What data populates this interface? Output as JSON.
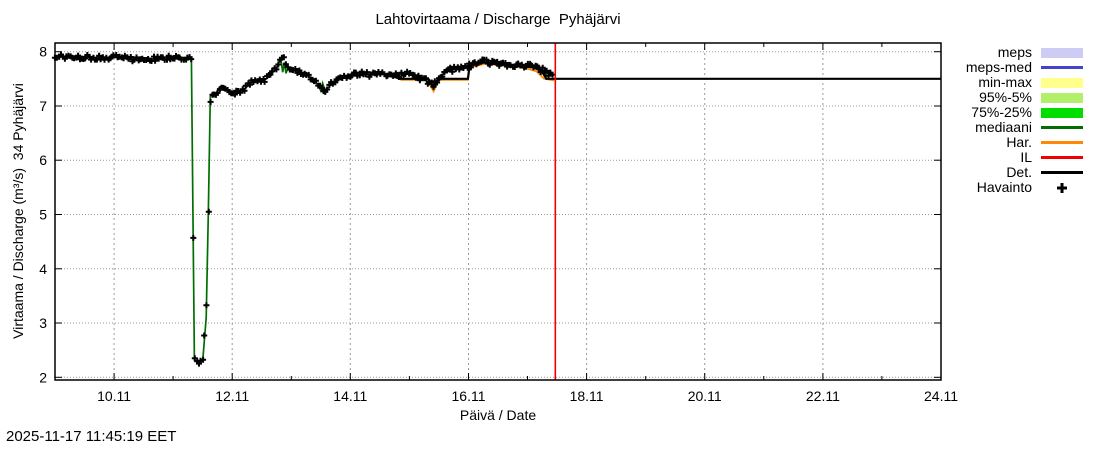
{
  "footer": {
    "timestamp": "2025-11-17 11:45:19 EET"
  },
  "chart_data": {
    "type": "line",
    "title": "Lahtovirtaama / Discharge  Pyhäjärvi",
    "x_axis": {
      "label": "Päivä / Date",
      "domain_days": [
        9.0,
        24.0
      ],
      "major_ticks": [
        10,
        12,
        14,
        16,
        18,
        20,
        22,
        24
      ],
      "tick_labels": [
        "10.11",
        "12.11",
        "14.11",
        "16.11",
        "18.11",
        "20.11",
        "22.11",
        "24.11"
      ],
      "minor_ticks": [
        9,
        11,
        13,
        15,
        17,
        19,
        21,
        23
      ],
      "grid": true
    },
    "y_axis": {
      "label": "Virtaama / Discharge (m³/s)  34 Pyhäjärvi",
      "domain": [
        1.95,
        8.16
      ],
      "ticks": [
        2,
        3,
        4,
        5,
        6,
        7,
        8
      ],
      "grid": true
    },
    "series": {
      "observations": {
        "name": "Havainto",
        "marker": "plus",
        "color": "#000000",
        "range_days": [
          9.0,
          17.45
        ],
        "noise": {
          "step_days": 0.032,
          "amplitude": 0.045,
          "x_jitter_days": 0.008
        },
        "keypoints": [
          [
            9.0,
            7.92
          ],
          [
            9.25,
            7.89
          ],
          [
            9.5,
            7.91
          ],
          [
            9.75,
            7.88
          ],
          [
            10.0,
            7.9
          ],
          [
            10.25,
            7.87
          ],
          [
            10.5,
            7.85
          ],
          [
            10.75,
            7.88
          ],
          [
            11.0,
            7.9
          ],
          [
            11.31,
            7.88
          ],
          [
            11.36,
            2.32
          ],
          [
            11.44,
            2.26
          ],
          [
            11.5,
            2.3
          ],
          [
            11.56,
            3.1
          ],
          [
            11.595,
            5.0
          ],
          [
            11.63,
            7.18
          ],
          [
            11.72,
            7.24
          ],
          [
            11.83,
            7.36
          ],
          [
            11.94,
            7.28
          ],
          [
            12.06,
            7.24
          ],
          [
            12.2,
            7.3
          ],
          [
            12.34,
            7.45
          ],
          [
            12.44,
            7.5
          ],
          [
            12.54,
            7.47
          ],
          [
            12.66,
            7.58
          ],
          [
            12.76,
            7.72
          ],
          [
            12.84,
            7.93
          ],
          [
            12.95,
            7.72
          ],
          [
            13.05,
            7.67
          ],
          [
            13.18,
            7.61
          ],
          [
            13.32,
            7.52
          ],
          [
            13.46,
            7.38
          ],
          [
            13.58,
            7.26
          ],
          [
            13.7,
            7.44
          ],
          [
            13.82,
            7.53
          ],
          [
            13.96,
            7.57
          ],
          [
            14.15,
            7.6
          ],
          [
            14.35,
            7.57
          ],
          [
            14.55,
            7.6
          ],
          [
            14.78,
            7.56
          ],
          [
            14.95,
            7.62
          ],
          [
            15.1,
            7.56
          ],
          [
            15.26,
            7.48
          ],
          [
            15.4,
            7.38
          ],
          [
            15.53,
            7.56
          ],
          [
            15.68,
            7.66
          ],
          [
            15.82,
            7.69
          ],
          [
            15.96,
            7.71
          ],
          [
            16.1,
            7.78
          ],
          [
            16.26,
            7.82
          ],
          [
            16.42,
            7.79
          ],
          [
            16.58,
            7.76
          ],
          [
            16.72,
            7.72
          ],
          [
            16.86,
            7.74
          ],
          [
            17.0,
            7.76
          ],
          [
            17.13,
            7.7
          ],
          [
            17.26,
            7.66
          ],
          [
            17.36,
            7.59
          ],
          [
            17.45,
            7.57
          ]
        ]
      },
      "mediaani": {
        "name": "mediaani",
        "color": "#006e00",
        "points": [
          [
            9.0,
            7.92
          ],
          [
            9.25,
            7.89
          ],
          [
            9.5,
            7.91
          ],
          [
            9.75,
            7.88
          ],
          [
            10.0,
            7.9
          ],
          [
            10.25,
            7.87
          ],
          [
            10.5,
            7.85
          ],
          [
            10.75,
            7.88
          ],
          [
            11.0,
            7.9
          ],
          [
            11.31,
            7.88
          ],
          [
            11.36,
            2.32
          ],
          [
            11.44,
            2.26
          ],
          [
            11.5,
            2.3
          ],
          [
            11.56,
            3.1
          ],
          [
            11.595,
            5.0
          ],
          [
            11.63,
            7.18
          ],
          [
            11.72,
            7.24
          ],
          [
            11.83,
            7.36
          ],
          [
            11.94,
            7.28
          ],
          [
            12.06,
            7.24
          ],
          [
            12.2,
            7.3
          ],
          [
            12.34,
            7.45
          ],
          [
            12.44,
            7.5
          ],
          [
            12.54,
            7.47
          ],
          [
            12.66,
            7.58
          ],
          [
            12.76,
            7.72
          ],
          [
            12.82,
            7.9
          ],
          [
            12.855,
            7.62
          ],
          [
            12.88,
            7.8
          ],
          [
            12.91,
            7.6
          ],
          [
            12.95,
            7.72
          ],
          [
            13.05,
            7.67
          ],
          [
            13.18,
            7.61
          ],
          [
            13.32,
            7.52
          ],
          [
            13.46,
            7.38
          ],
          [
            13.5,
            7.28
          ],
          [
            13.53,
            7.42
          ],
          [
            13.58,
            7.26
          ],
          [
            13.7,
            7.44
          ],
          [
            13.82,
            7.53
          ],
          [
            13.96,
            7.57
          ],
          [
            14.15,
            7.6
          ],
          [
            14.35,
            7.57
          ],
          [
            14.55,
            7.6
          ],
          [
            14.78,
            7.56
          ],
          [
            14.95,
            7.62
          ],
          [
            15.1,
            7.56
          ],
          [
            15.26,
            7.48
          ],
          [
            15.4,
            7.38
          ],
          [
            15.53,
            7.56
          ],
          [
            15.68,
            7.66
          ],
          [
            15.82,
            7.69
          ],
          [
            15.96,
            7.71
          ],
          [
            16.1,
            7.78
          ],
          [
            16.26,
            7.82
          ],
          [
            16.42,
            7.79
          ],
          [
            16.58,
            7.76
          ],
          [
            16.72,
            7.72
          ],
          [
            16.86,
            7.74
          ],
          [
            17.0,
            7.76
          ],
          [
            17.13,
            7.7
          ],
          [
            17.26,
            7.66
          ],
          [
            17.3,
            7.54
          ],
          [
            17.33,
            7.63
          ],
          [
            17.36,
            7.59
          ],
          [
            17.45,
            7.57
          ]
        ]
      },
      "det": {
        "name": "Det.",
        "color": "#000000",
        "points": [
          [
            14.6,
            7.58
          ],
          [
            14.85,
            7.5
          ],
          [
            15.32,
            7.5
          ],
          [
            15.41,
            7.33
          ],
          [
            15.49,
            7.5
          ],
          [
            15.99,
            7.5
          ],
          [
            16.02,
            7.74
          ],
          [
            16.26,
            7.8
          ],
          [
            16.55,
            7.76
          ],
          [
            16.9,
            7.73
          ],
          [
            17.1,
            7.71
          ],
          [
            17.24,
            7.64
          ],
          [
            17.32,
            7.5
          ],
          [
            24.0,
            7.5
          ]
        ]
      },
      "har": {
        "name": "Har.",
        "color": "#ff8806",
        "points": [
          [
            14.85,
            7.48
          ],
          [
            15.3,
            7.48
          ],
          [
            15.41,
            7.27
          ],
          [
            15.5,
            7.48
          ],
          [
            15.99,
            7.48
          ],
          [
            16.02,
            7.71
          ],
          [
            16.3,
            7.78
          ],
          [
            16.6,
            7.74
          ],
          [
            16.95,
            7.7
          ],
          [
            17.15,
            7.64
          ],
          [
            17.28,
            7.5
          ],
          [
            17.45,
            7.47
          ]
        ]
      },
      "il": {
        "name": "IL",
        "color": "#f00000",
        "vline_day": 17.47
      }
    },
    "legend": {
      "position": "right",
      "items": [
        {
          "label": "meps",
          "swatch": "band",
          "color": "#ccccf4"
        },
        {
          "label": "meps-med",
          "swatch": "line",
          "color": "#4444cc"
        },
        {
          "label": "min-max",
          "swatch": "band",
          "color": "#ffff8c"
        },
        {
          "label": "95%-5%",
          "swatch": "band",
          "color": "#b2ef6a"
        },
        {
          "label": "75%-25%",
          "swatch": "band",
          "color": "#00dd00"
        },
        {
          "label": "mediaani",
          "swatch": "line",
          "color": "#006e00"
        },
        {
          "label": "Har.",
          "swatch": "line",
          "color": "#ff8806"
        },
        {
          "label": "IL",
          "swatch": "line",
          "color": "#f00000"
        },
        {
          "label": "Det.",
          "swatch": "line",
          "color": "#000000"
        },
        {
          "label": "Havainto",
          "swatch": "marker",
          "color": "#000000"
        }
      ]
    },
    "colors": {
      "grid": "#999999",
      "border": "#000000",
      "background": "#ffffff"
    }
  }
}
